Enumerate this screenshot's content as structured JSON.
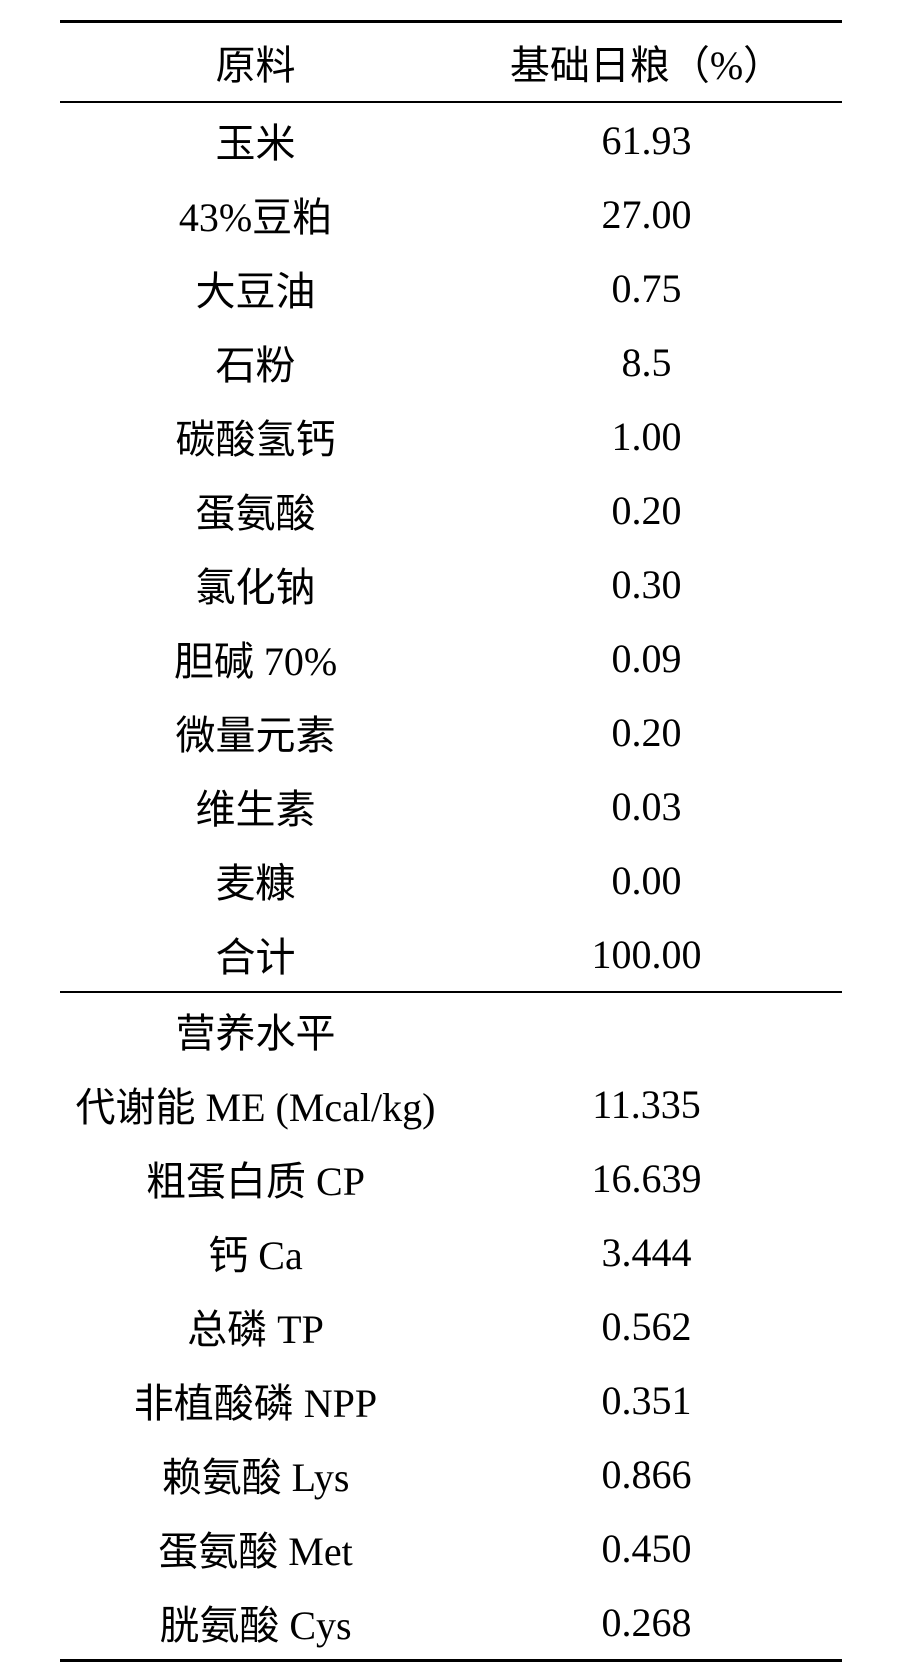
{
  "table": {
    "headers": {
      "col1": "原料",
      "col2": "基础日粮（%）"
    },
    "ingredients": [
      {
        "label": "玉米",
        "value": "61.93"
      },
      {
        "label": "43%豆粕",
        "value": "27.00"
      },
      {
        "label": "大豆油",
        "value": "0.75"
      },
      {
        "label": "石粉",
        "value": "8.5"
      },
      {
        "label": "碳酸氢钙",
        "value": "1.00"
      },
      {
        "label": "蛋氨酸",
        "value": "0.20"
      },
      {
        "label": "氯化钠",
        "value": "0.30"
      },
      {
        "label": "胆碱 70%",
        "value": "0.09"
      },
      {
        "label": "微量元素",
        "value": "0.20"
      },
      {
        "label": "维生素",
        "value": "0.03"
      },
      {
        "label": "麦糠",
        "value": "0.00"
      },
      {
        "label": "合计",
        "value": "100.00"
      }
    ],
    "nutrition_header": "营养水平",
    "nutrition": [
      {
        "label": "代谢能 ME (Mcal/kg)",
        "value": "11.335"
      },
      {
        "label": "粗蛋白质 CP",
        "value": "16.639"
      },
      {
        "label": "钙 Ca",
        "value": "3.444"
      },
      {
        "label": "总磷 TP",
        "value": "0.562"
      },
      {
        "label": "非植酸磷 NPP",
        "value": "0.351"
      },
      {
        "label": "赖氨酸 Lys",
        "value": "0.866"
      },
      {
        "label": "蛋氨酸 Met",
        "value": "0.450"
      },
      {
        "label": "胱氨酸 Cys",
        "value": "0.268"
      }
    ]
  },
  "styling": {
    "background_color": "#ffffff",
    "text_color": "#000000",
    "border_color": "#000000",
    "font_size": 40,
    "font_family": "SimSun, Times New Roman, serif",
    "top_border_width": 3,
    "middle_border_width": 2,
    "bottom_border_width": 3,
    "col_widths": [
      "50%",
      "50%"
    ],
    "text_align": "center"
  }
}
